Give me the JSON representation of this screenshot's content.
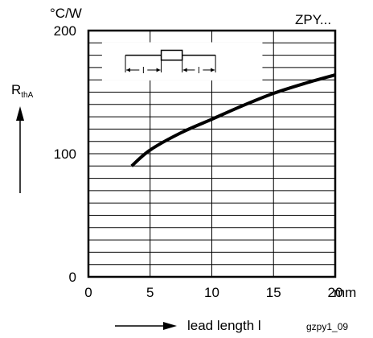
{
  "chart_data": {
    "type": "line",
    "y_unit": "°C/W",
    "part": "ZPY...",
    "ylabel_main": "R",
    "ylabel_sub": "thA",
    "xlabel": "lead length l",
    "x_unit": "mm",
    "figure_id": "gzpy1_09",
    "inset_label_left": "l",
    "inset_label_right": "l",
    "xlim": [
      0,
      20
    ],
    "ylim": [
      0,
      200
    ],
    "x_ticks": [
      0,
      5,
      10,
      15,
      20
    ],
    "x_tick_labels": [
      "0",
      "5",
      "10",
      "15",
      "20"
    ],
    "y_ticks": [
      0,
      100,
      200
    ],
    "y_tick_labels": [
      "0",
      "100",
      "200"
    ],
    "grid": true,
    "series": [
      {
        "x": [
          3.5,
          5,
          7.5,
          10,
          12.5,
          15,
          17.5,
          20
        ],
        "values": [
          90,
          103,
          117,
          128,
          139,
          149,
          157,
          164
        ]
      }
    ]
  }
}
